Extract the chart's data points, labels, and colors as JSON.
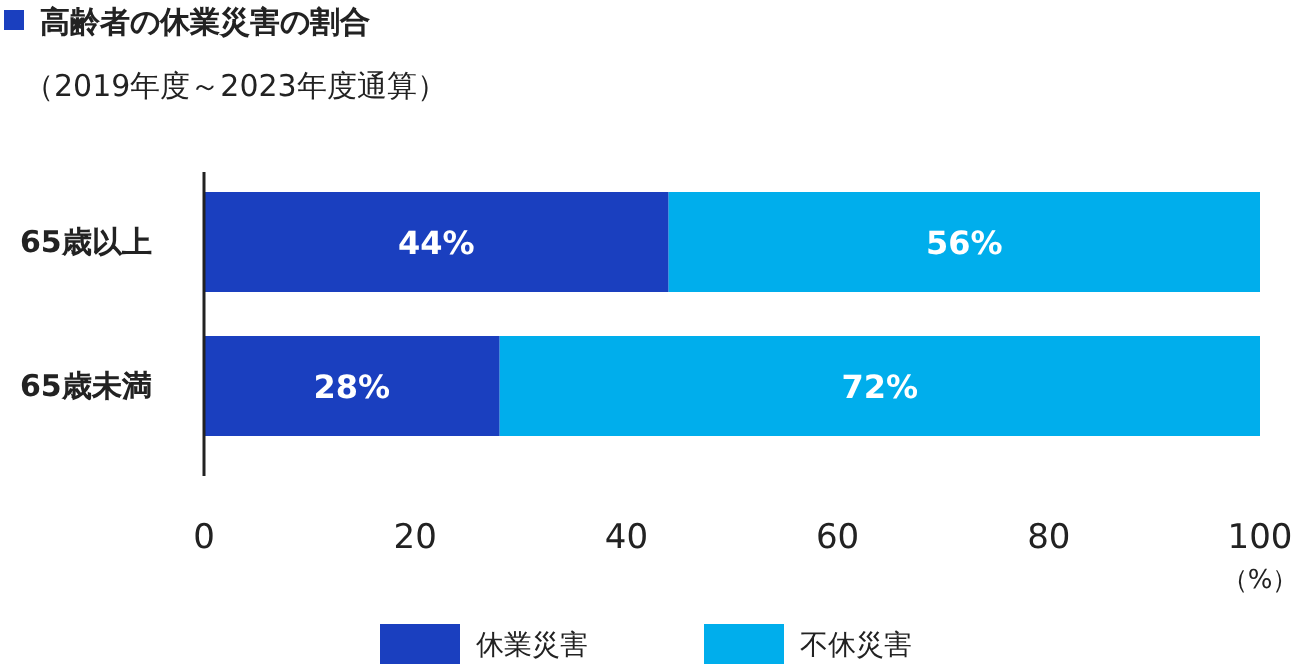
{
  "chart_data": {
    "type": "bar",
    "orientation": "horizontal",
    "stacked": true,
    "title": "高齢者の休業災害の割合",
    "subtitle": "（2019年度～2023年度通算）",
    "xlabel": "（%）",
    "categories": [
      "65歳以上",
      "65歳未満"
    ],
    "series": [
      {
        "name": "休業災害",
        "color": "#1a3fbf",
        "values": [
          44,
          28
        ],
        "value_labels": [
          "44%",
          "28%"
        ]
      },
      {
        "name": "不休災害",
        "color": "#00aeec",
        "values": [
          56,
          72
        ],
        "value_labels": [
          "56%",
          "72%"
        ]
      }
    ],
    "xlim": [
      0,
      100
    ],
    "xticks": [
      0,
      20,
      40,
      60,
      80,
      100
    ],
    "legend": "bottom"
  }
}
